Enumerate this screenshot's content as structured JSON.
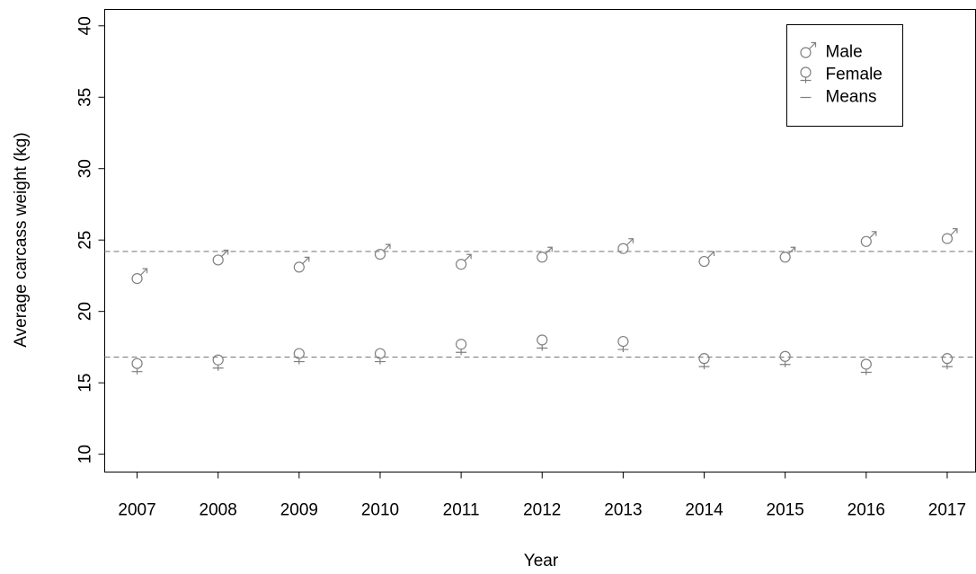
{
  "chart_data": {
    "type": "scatter",
    "x": [
      2007,
      2008,
      2009,
      2010,
      2011,
      2012,
      2013,
      2014,
      2015,
      2016,
      2017
    ],
    "series": [
      {
        "name": "Male",
        "color": "#808080",
        "values": [
          22.3,
          23.6,
          23.1,
          24.0,
          23.3,
          23.8,
          24.4,
          23.5,
          23.8,
          24.9,
          25.1
        ]
      },
      {
        "name": "Female",
        "color": "#808080",
        "values": [
          16.35,
          16.6,
          17.05,
          17.05,
          17.7,
          18.0,
          17.9,
          16.7,
          16.85,
          16.3,
          16.7
        ]
      }
    ],
    "means": {
      "name": "Means",
      "color": "#808080",
      "values": [
        24.2,
        16.8
      ]
    },
    "xlabel": "Year",
    "ylabel": "Average carcass weight (kg)",
    "xlim": [
      2006.6,
      2017.35
    ],
    "ylim": [
      8.75,
      41.15
    ],
    "xticks": [
      2007,
      2008,
      2009,
      2010,
      2011,
      2012,
      2013,
      2014,
      2015,
      2016,
      2017
    ],
    "yticks": [
      10,
      15,
      20,
      25,
      30,
      35,
      40
    ],
    "legend": "top-right"
  }
}
